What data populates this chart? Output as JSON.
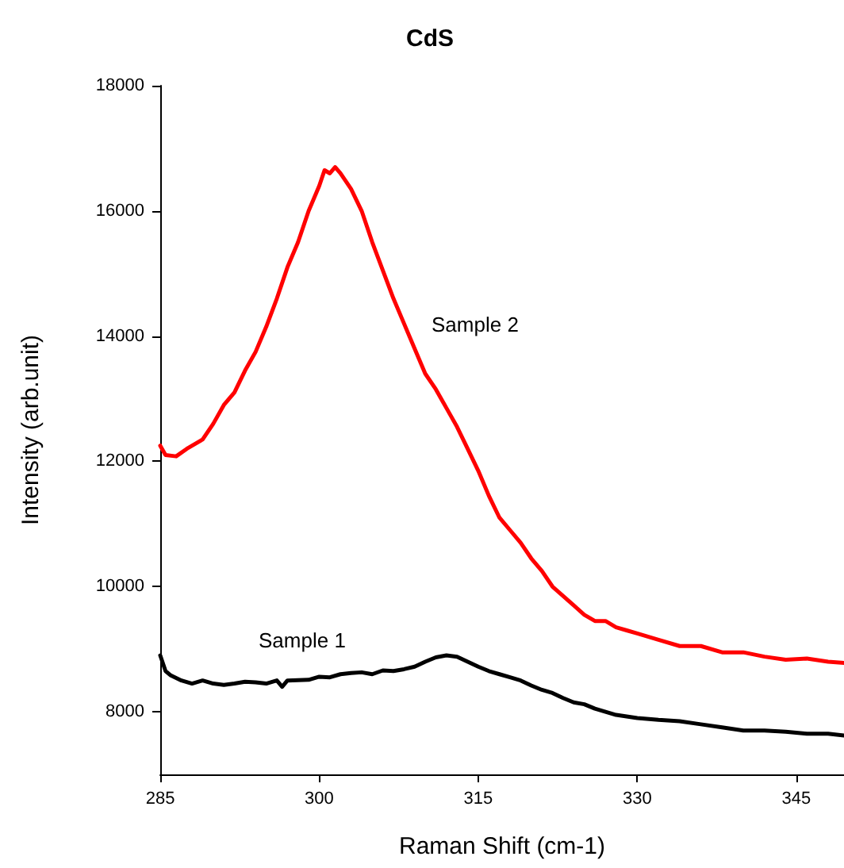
{
  "chart_data": {
    "type": "line",
    "title": "CdS",
    "xlabel": "Raman Shift (cm-1)",
    "ylabel": "Intensity (arb.unit)",
    "xlim": [
      285,
      349.5
    ],
    "xticks": [
      285,
      300,
      315,
      330,
      345
    ],
    "ylim": [
      7000,
      18000
    ],
    "yticks": [
      8000,
      10000,
      12000,
      14000,
      16000,
      18000
    ],
    "grid": false,
    "legend": false,
    "marker": "none",
    "line_style": "solid",
    "series": [
      {
        "name": "Sample 2",
        "color": "#ff0000",
        "x": [
          285,
          285.5,
          286.5,
          287.5,
          289,
          290,
          291,
          292,
          293,
          294,
          295,
          296,
          297,
          298,
          299,
          300,
          300.5,
          301,
          301.5,
          302,
          303,
          304,
          305,
          306,
          307,
          308,
          309,
          310,
          311,
          312,
          313,
          314,
          315,
          316,
          317,
          318,
          319,
          320,
          321,
          322,
          323,
          324,
          325,
          326,
          327,
          328,
          329,
          330,
          332,
          334,
          336,
          338,
          340,
          342,
          344,
          346,
          348,
          349.5
        ],
        "values": [
          12250,
          12100,
          12080,
          12200,
          12350,
          12600,
          12900,
          13100,
          13450,
          13750,
          14150,
          14600,
          15100,
          15500,
          16000,
          16400,
          16650,
          16600,
          16700,
          16600,
          16350,
          16000,
          15500,
          15050,
          14600,
          14200,
          13800,
          13400,
          13150,
          12850,
          12550,
          12200,
          11850,
          11450,
          11100,
          10900,
          10700,
          10450,
          10250,
          10000,
          9850,
          9700,
          9550,
          9450,
          9450,
          9350,
          9300,
          9250,
          9150,
          9050,
          9050,
          8950,
          8950,
          8880,
          8830,
          8850,
          8800,
          8780
        ]
      },
      {
        "name": "Sample 1",
        "color": "#000000",
        "x": [
          285,
          285.5,
          286,
          287,
          288,
          289,
          290,
          291,
          292,
          293,
          294,
          295,
          296,
          296.5,
          297,
          299,
          300,
          301,
          302,
          303,
          304,
          305,
          306,
          307,
          308,
          309,
          310,
          311,
          312,
          313,
          314,
          315,
          316,
          317,
          318,
          319,
          320,
          321,
          322,
          323,
          324,
          325,
          326,
          327,
          328,
          330,
          332,
          334,
          336,
          338,
          340,
          342,
          344,
          346,
          348,
          349.5
        ],
        "values": [
          8900,
          8650,
          8580,
          8500,
          8450,
          8500,
          8450,
          8430,
          8450,
          8480,
          8470,
          8450,
          8500,
          8400,
          8500,
          8510,
          8560,
          8550,
          8600,
          8620,
          8630,
          8600,
          8660,
          8650,
          8680,
          8720,
          8800,
          8870,
          8900,
          8880,
          8800,
          8720,
          8650,
          8600,
          8550,
          8500,
          8420,
          8350,
          8300,
          8220,
          8150,
          8120,
          8050,
          8000,
          7950,
          7900,
          7870,
          7850,
          7800,
          7750,
          7700,
          7700,
          7680,
          7650,
          7650,
          7620
        ]
      }
    ]
  }
}
